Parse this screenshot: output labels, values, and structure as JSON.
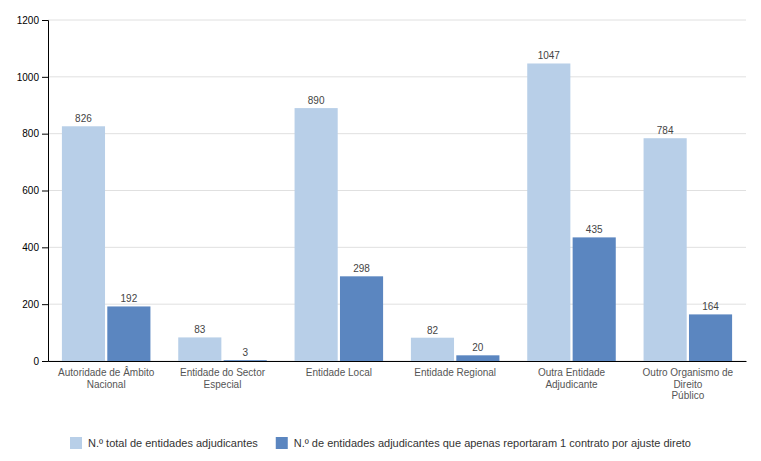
{
  "chart_data": {
    "type": "bar",
    "categories": [
      "Autoridade de Âmbito\nNacional",
      "Entidade do Sector Especial",
      "Entidade Local",
      "Entidade Regional",
      "Outra Entidade Adjudicante",
      "Outro Organismo de Direito\nPúblico"
    ],
    "series": [
      {
        "name": "N.º total de entidades adjudicantes",
        "color": "#b8cfe8",
        "values": [
          826,
          83,
          890,
          82,
          1047,
          784
        ]
      },
      {
        "name": "N.º de entidades adjudicantes que apenas reportaram 1 contrato por ajuste direto",
        "color": "#5b86c0",
        "values": [
          192,
          3,
          298,
          20,
          435,
          164
        ]
      }
    ],
    "ylim": [
      0,
      1200
    ],
    "yticks": [
      0,
      200,
      400,
      600,
      800,
      1000,
      1200
    ],
    "grid": true,
    "data_labels": true,
    "legend": "bottom"
  }
}
